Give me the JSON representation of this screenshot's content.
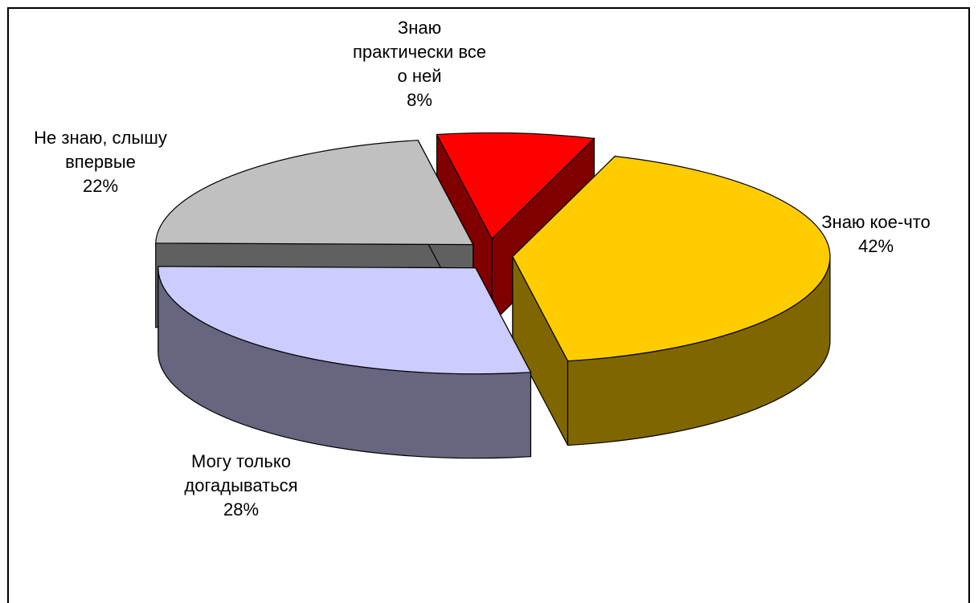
{
  "chart_data": {
    "type": "pie3d",
    "categories": [
      "Знаю практически все о ней",
      "Знаю кое-что",
      "Могу только догадываться",
      "Не знаю, слышу впервые"
    ],
    "values": [
      8,
      42,
      28,
      22
    ],
    "value_labels": [
      "8%",
      "42%",
      "28%",
      "22%"
    ],
    "colors": [
      "#ff0000",
      "#ffcc00",
      "#ccccff",
      "#c0c0c0"
    ]
  }
}
